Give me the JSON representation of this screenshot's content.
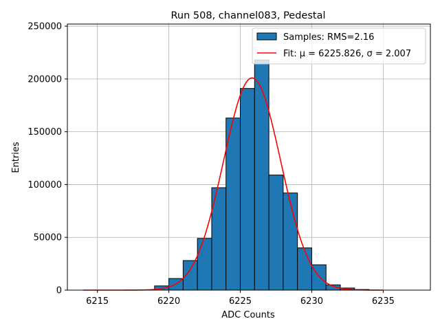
{
  "chart_data": {
    "type": "bar",
    "title": "Run 508, channel083, Pedestal",
    "xlabel": "ADC Counts",
    "ylabel": "Entries",
    "xlim": [
      6212.9,
      6238.3
    ],
    "ylim": [
      0,
      252000
    ],
    "xticks": [
      6215,
      6220,
      6225,
      6230,
      6235
    ],
    "yticks": [
      0,
      50000,
      100000,
      150000,
      200000,
      250000
    ],
    "grid": true,
    "legend_position": "top-right",
    "histogram": {
      "name": "Samples: RMS=2.16",
      "color": "#1f77b4",
      "edgecolor": "#000000",
      "bins": [
        {
          "x0": 6219,
          "x1": 6220,
          "count": 4000
        },
        {
          "x0": 6220,
          "x1": 6221,
          "count": 11000
        },
        {
          "x0": 6221,
          "x1": 6222,
          "count": 28000
        },
        {
          "x0": 6222,
          "x1": 6223,
          "count": 49000
        },
        {
          "x0": 6223,
          "x1": 6224,
          "count": 97000
        },
        {
          "x0": 6224,
          "x1": 6225,
          "count": 163000
        },
        {
          "x0": 6225,
          "x1": 6226,
          "count": 191000
        },
        {
          "x0": 6226,
          "x1": 6227,
          "count": 218000
        },
        {
          "x0": 6227,
          "x1": 6228,
          "count": 109000
        },
        {
          "x0": 6228,
          "x1": 6229,
          "count": 92000
        },
        {
          "x0": 6229,
          "x1": 6230,
          "count": 40000
        },
        {
          "x0": 6230,
          "x1": 6231,
          "count": 24000
        },
        {
          "x0": 6231,
          "x1": 6232,
          "count": 5000
        },
        {
          "x0": 6232,
          "x1": 6233,
          "count": 2000
        },
        {
          "x0": 6233,
          "x1": 6234,
          "count": 600
        }
      ]
    },
    "fit": {
      "name": "Fit: μ = 6225.826, σ = 2.007",
      "color": "#ff0000",
      "mu": 6225.826,
      "sigma": 2.007,
      "amplitude": 201000,
      "x_range": [
        6214,
        6235
      ]
    }
  }
}
